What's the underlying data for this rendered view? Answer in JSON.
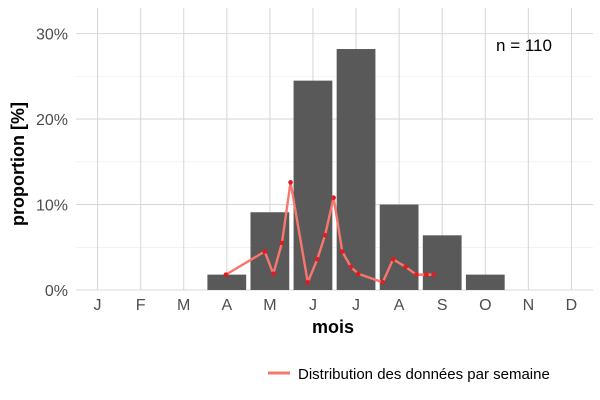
{
  "chart_data": {
    "type": "bar",
    "categories": [
      "J",
      "F",
      "M",
      "A",
      "M",
      "J",
      "J",
      "A",
      "S",
      "O",
      "N",
      "D"
    ],
    "values": [
      0,
      0,
      0,
      1.8,
      9.1,
      24.5,
      28.2,
      10.0,
      6.4,
      1.8,
      0,
      0
    ],
    "bar_color": "#595959",
    "xlabel": "mois",
    "ylabel": "proportion [%]",
    "ylim": [
      0,
      33
    ],
    "yticks": [
      0,
      10,
      20,
      30
    ],
    "ytick_labels": [
      "0%",
      "10%",
      "20%",
      "30%"
    ],
    "grid": true,
    "annotation": "n = 110",
    "series": [
      {
        "name": "Distribution des données par semaine",
        "type": "line",
        "color": "#f8766d",
        "marker_color": "#e41a1c",
        "x": [
          3.48,
          4.38,
          4.58,
          4.78,
          4.98,
          5.38,
          5.6,
          5.78,
          5.98,
          6.18,
          6.38,
          6.55,
          7.12,
          7.36,
          7.65,
          7.9,
          8.13,
          8.3
        ],
        "y": [
          1.8,
          4.5,
          1.9,
          5.5,
          12.6,
          0.9,
          3.6,
          6.4,
          10.8,
          4.5,
          2.7,
          1.9,
          0.9,
          3.6,
          2.7,
          1.8,
          1.8,
          1.8
        ]
      }
    ],
    "legend_position": "bottom-right"
  }
}
